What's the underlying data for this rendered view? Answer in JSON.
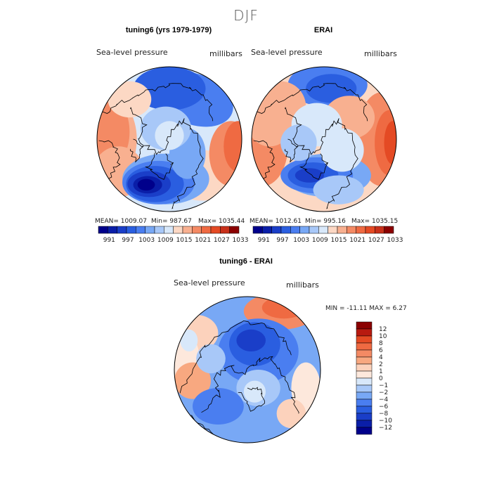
{
  "page": {
    "title": "DJF"
  },
  "colors": {
    "abs_scale": [
      "#00008b",
      "#0a1ea8",
      "#1a3ec8",
      "#2a5ee0",
      "#4a7ef0",
      "#78a8f5",
      "#a8c8f8",
      "#d8e8fa",
      "#fcd8c4",
      "#f8b090",
      "#f48a64",
      "#ef6a42",
      "#e44a24",
      "#c8301a",
      "#8b0000"
    ],
    "diff_scale": [
      "#00008b",
      "#0a1ea8",
      "#1a3ec8",
      "#2a5ee0",
      "#4a7ef0",
      "#78a8f5",
      "#a8c8f8",
      "#d8e8fa",
      "#fde8dc",
      "#fcd2bc",
      "#f8a880",
      "#f48a64",
      "#ef6a42",
      "#e44a24",
      "#b81a10",
      "#8b0000"
    ],
    "coast": "#000000"
  },
  "chart_data": [
    {
      "type": "heatmap",
      "projection": "polar-stereographic",
      "title": "tuning6 (yrs 1979-1979)",
      "variable": "Sea-level pressure",
      "units": "millibars",
      "stats": {
        "mean": "MEAN= 1009.07",
        "min": "Min= 987.67",
        "max": "Max= 1035.44"
      },
      "colorbar_ticks": [
        "991",
        "997",
        "1003",
        "1009",
        "1015",
        "1021",
        "1027",
        "1033"
      ]
    },
    {
      "type": "heatmap",
      "projection": "polar-stereographic",
      "title": "ERAI",
      "variable": "Sea-level pressure",
      "units": "millibars",
      "stats": {
        "mean": "MEAN= 1012.61",
        "min": "Min= 995.16",
        "max": "Max= 1035.15"
      },
      "colorbar_ticks": [
        "991",
        "997",
        "1003",
        "1009",
        "1015",
        "1021",
        "1027",
        "1033"
      ]
    },
    {
      "type": "heatmap",
      "projection": "polar-stereographic",
      "title": "tuning6 - ERAI",
      "variable": "Sea-level pressure",
      "units": "millibars",
      "stats": {
        "minmax": "MIN = -11.11 MAX =    6.27"
      },
      "colorbar_ticks": [
        "12",
        "10",
        "8",
        "6",
        "4",
        "2",
        "1",
        "0",
        "−1",
        "−2",
        "−4",
        "−6",
        "−8",
        "−10",
        "−12"
      ]
    }
  ]
}
